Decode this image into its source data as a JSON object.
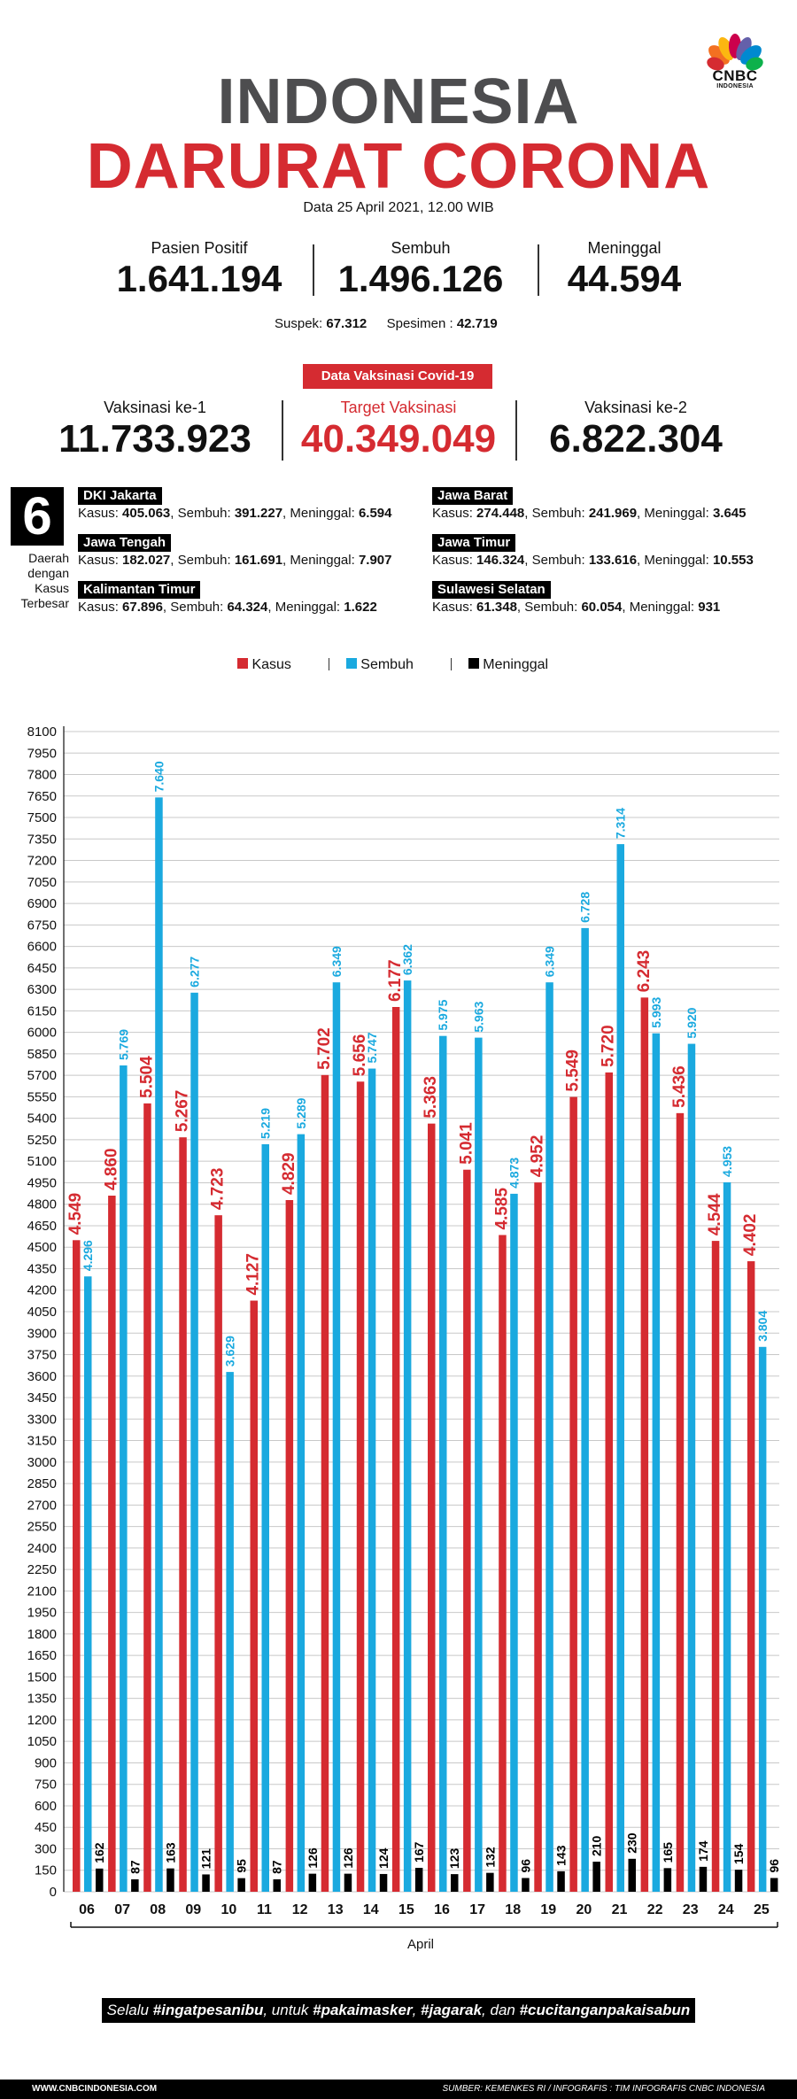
{
  "brand": {
    "logo_text": "CNBC",
    "logo_sub": "INDONESIA"
  },
  "header": {
    "title_line1": "INDONESIA",
    "title_line2": "DARURAT CORONA",
    "date": "Data 25 April 2021, 12.00 WIB"
  },
  "stats": {
    "positive": {
      "label": "Pasien Positif",
      "value": "1.641.194"
    },
    "recovered": {
      "label": "Sembuh",
      "value": "1.496.126"
    },
    "deaths": {
      "label": "Meninggal",
      "value": "44.594"
    },
    "suspect_label": "Suspek: ",
    "suspect_value": "67.312",
    "specimen_label": "Spesimen : ",
    "specimen_value": "42.719"
  },
  "vaccination": {
    "heading": "Data Vaksinasi Covid-19",
    "dose1": {
      "label": "Vaksinasi ke-1",
      "value": "11.733.923"
    },
    "target": {
      "label": "Target Vaksinasi",
      "value": "40.349.049"
    },
    "dose2": {
      "label": "Vaksinasi ke-2",
      "value": "6.822.304"
    }
  },
  "regions": {
    "count": "6",
    "caption": [
      "Daerah",
      "dengan",
      "Kasus",
      "Terbesar"
    ],
    "items": [
      {
        "name": "DKI Jakarta",
        "kasus": "405.063",
        "sembuh": "391.227",
        "meninggal": "6.594"
      },
      {
        "name": "Jawa Tengah",
        "kasus": "182.027",
        "sembuh": "161.691",
        "meninggal": "7.907"
      },
      {
        "name": "Kalimantan Timur",
        "kasus": "67.896",
        "sembuh": "64.324",
        "meninggal": "1.622"
      },
      {
        "name": "Jawa Barat",
        "kasus": "274.448",
        "sembuh": "241.969",
        "meninggal": "3.645"
      },
      {
        "name": "Jawa Timur",
        "kasus": "146.324",
        "sembuh": "133.616",
        "meninggal": "10.553"
      },
      {
        "name": "Sulawesi Selatan",
        "kasus": "61.348",
        "sembuh": "60.054",
        "meninggal": "931"
      }
    ],
    "labels": {
      "kasus": "Kasus: ",
      "sembuh": ", Sembuh: ",
      "meninggal": ", Meninggal: "
    }
  },
  "colors": {
    "kasus": "#d52b31",
    "sembuh": "#1aa9df",
    "meninggal": "#000000",
    "title_gray": "#4d4d4f"
  },
  "chart_data": {
    "type": "bar",
    "xlabel": "April",
    "ylabel": "",
    "ylim": [
      0,
      8100
    ],
    "yticks": [
      0,
      150,
      300,
      450,
      600,
      750,
      900,
      1050,
      1200,
      1350,
      1500,
      1650,
      1800,
      1950,
      2100,
      2250,
      2400,
      2550,
      2700,
      2850,
      3000,
      3150,
      3300,
      3450,
      3600,
      3750,
      3900,
      4050,
      4200,
      4350,
      4500,
      4650,
      4800,
      4950,
      5100,
      5250,
      5400,
      5550,
      5700,
      5850,
      6000,
      6150,
      6300,
      6450,
      6600,
      6750,
      6900,
      7050,
      7200,
      7350,
      7500,
      7650,
      7800,
      7950,
      8100
    ],
    "legend": [
      "Kasus",
      "Sembuh",
      "Meninggal"
    ],
    "categories": [
      "06",
      "07",
      "08",
      "09",
      "10",
      "11",
      "12",
      "13",
      "14",
      "15",
      "16",
      "17",
      "18",
      "19",
      "20",
      "21",
      "22",
      "23",
      "24",
      "25"
    ],
    "series": [
      {
        "name": "Kasus",
        "values": [
          4549,
          4860,
          5504,
          5267,
          4723,
          4127,
          4829,
          5702,
          5656,
          6177,
          5363,
          5041,
          4585,
          4952,
          5549,
          5720,
          6243,
          5436,
          4544,
          4402
        ],
        "labels": [
          "4.549",
          "4.860",
          "5.504",
          "5.267",
          "4.723",
          "4.127",
          "4.829",
          "5.702",
          "5.656",
          "6.177",
          "5.363",
          "5.041",
          "4.585",
          "4.952",
          "5.549",
          "5.720",
          "6.243",
          "5.436",
          "4.544",
          "4.402"
        ]
      },
      {
        "name": "Sembuh",
        "values": [
          4296,
          5769,
          7640,
          6277,
          3629,
          5219,
          5289,
          6349,
          5747,
          6362,
          5975,
          5963,
          4873,
          6349,
          6728,
          7314,
          5993,
          5920,
          4953,
          3804
        ],
        "labels": [
          "4.296",
          "5.769",
          "7.640",
          "6.277",
          "3.629",
          "5.219",
          "5.289",
          "6.349",
          "5.747",
          "6.362",
          "5.975",
          "5.963",
          "4.873",
          "6.349",
          "6.728",
          "7.314",
          "5.993",
          "5.920",
          "4.953",
          "3.804"
        ]
      },
      {
        "name": "Meninggal",
        "values": [
          162,
          87,
          163,
          121,
          95,
          87,
          126,
          126,
          124,
          167,
          123,
          132,
          96,
          143,
          210,
          230,
          165,
          174,
          154,
          96
        ],
        "labels": [
          "162",
          "87",
          "163",
          "121",
          "95",
          "87",
          "126",
          "126",
          "124",
          "167",
          "123",
          "132",
          "96",
          "143",
          "210",
          "230",
          "165",
          "174",
          "154",
          "96"
        ]
      }
    ]
  },
  "tagline": {
    "prefix": "Selalu ",
    "h1": "#ingatpesanibu",
    "mid1": ", untuk ",
    "h2": "#pakaimasker",
    "sep": ", ",
    "h3": "#jagarak",
    "mid2": ", dan ",
    "h4": "#cucitanganpakaisabun"
  },
  "footer": {
    "website": "WWW.CNBCINDONESIA.COM",
    "source": "SUMBER: KEMENKES RI / INFOGRAFIS : TIM INFOGRAFIS CNBC INDONESIA"
  }
}
